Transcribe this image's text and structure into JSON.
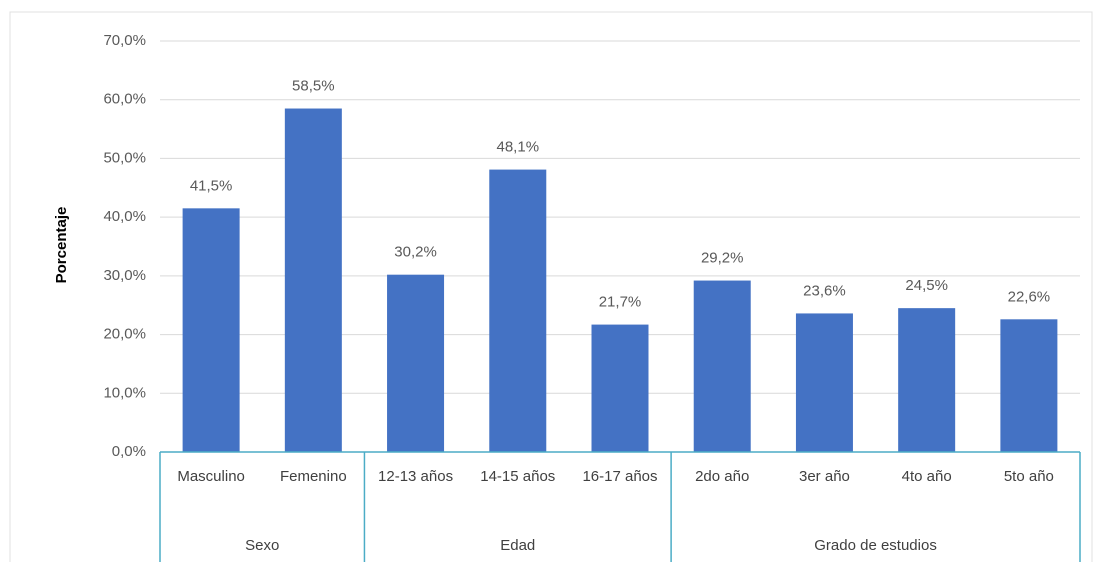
{
  "chart_data": {
    "type": "bar",
    "y_axis_label": "Porcentaje",
    "categories": [
      "Masculino",
      "Femenino",
      "12-13 años",
      "14-15 años",
      "16-17 años",
      "2do año",
      "3er año",
      "4to año",
      "5to año"
    ],
    "groups": [
      {
        "label": "Sexo",
        "size": 2
      },
      {
        "label": "Edad",
        "size": 3
      },
      {
        "label": "Grado de estudios",
        "size": 4
      }
    ],
    "values": [
      41.5,
      58.5,
      30.2,
      48.1,
      21.7,
      29.2,
      23.6,
      24.5,
      22.6
    ],
    "value_labels": [
      "41,5%",
      "58,5%",
      "30,2%",
      "48,1%",
      "21,7%",
      "29,2%",
      "23,6%",
      "24,5%",
      "22,6%"
    ],
    "color": "#4472c4",
    "ylim": [
      0,
      70
    ],
    "yticks": [
      {
        "value": 0,
        "label": "0,0%"
      },
      {
        "value": 10,
        "label": "10,0%"
      },
      {
        "value": 20,
        "label": "20,0%"
      },
      {
        "value": 30,
        "label": "30,0%"
      },
      {
        "value": 40,
        "label": "40,0%"
      },
      {
        "value": 50,
        "label": "50,0%"
      },
      {
        "value": 60,
        "label": "60,0%"
      },
      {
        "value": 70,
        "label": "70,0%"
      }
    ],
    "grid": true
  }
}
